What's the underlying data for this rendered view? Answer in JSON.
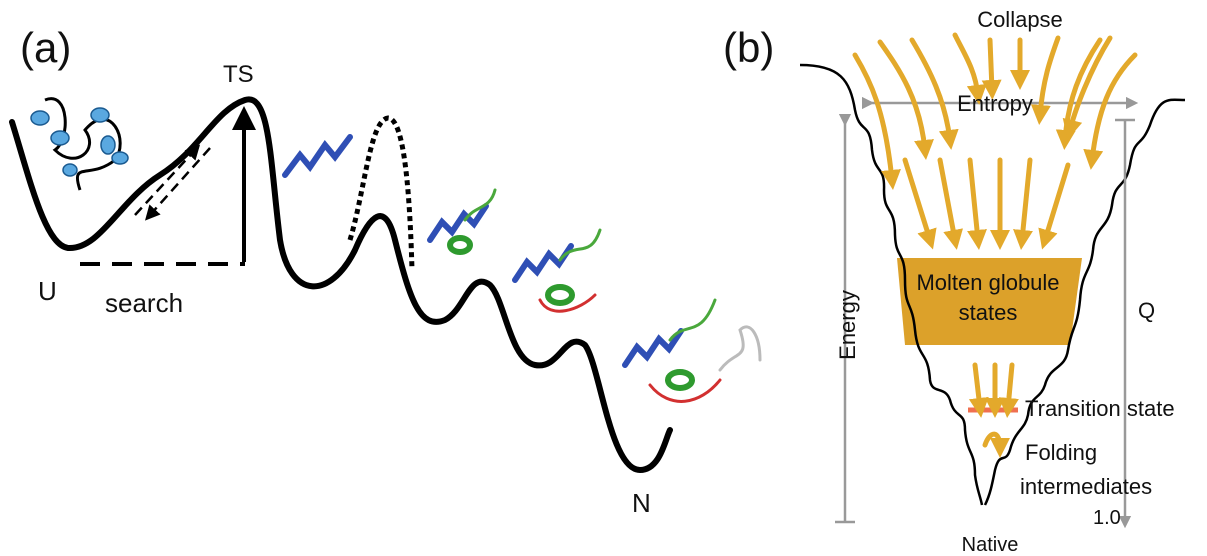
{
  "panel_a": {
    "label": "(a)",
    "ts": "TS",
    "u": "U",
    "search": "search",
    "n": "N"
  },
  "panel_b": {
    "label": "(b)",
    "collapse": "Collapse",
    "entropy": "Entropy",
    "molten": [
      "Molten globule",
      "states"
    ],
    "energy": "Energy",
    "q": "Q",
    "transition": "Transition state",
    "intermediates": [
      "Folding",
      "intermediates"
    ],
    "q_end": "1.0",
    "native": "Native"
  }
}
